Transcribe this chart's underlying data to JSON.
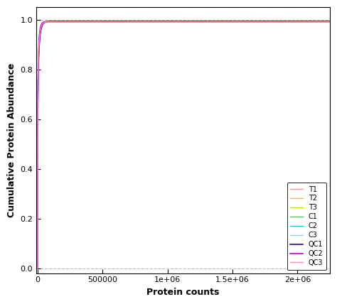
{
  "title": "",
  "xlabel": "Protein counts",
  "ylabel": "Cumulative Protein Abundance",
  "xlim": [
    -10000,
    2250000
  ],
  "ylim": [
    -0.02,
    1.05
  ],
  "xticks": [
    0,
    500000,
    1000000,
    1500000,
    2000000
  ],
  "yticks": [
    0.0,
    0.2,
    0.4,
    0.6,
    0.8,
    1.0
  ],
  "hlines": [
    0.0,
    1.0
  ],
  "hline_color": "#bbbbbb",
  "hline_style": "--",
  "series": [
    {
      "label": "T1",
      "color": "#FF9999",
      "lw": 1.0
    },
    {
      "label": "T2",
      "color": "#FFB347",
      "lw": 1.0
    },
    {
      "label": "T3",
      "color": "#CCDD00",
      "lw": 1.0
    },
    {
      "label": "C1",
      "color": "#55CC55",
      "lw": 1.0
    },
    {
      "label": "C2",
      "color": "#00DDCC",
      "lw": 1.0
    },
    {
      "label": "C3",
      "color": "#99CCFF",
      "lw": 1.0
    },
    {
      "label": "QC1",
      "color": "#1111AA",
      "lw": 1.2
    },
    {
      "label": "QC2",
      "color": "#CC00CC",
      "lw": 1.2
    },
    {
      "label": "QC3",
      "color": "#FF88BB",
      "lw": 1.0
    }
  ],
  "legend_loc": "lower right",
  "legend_fontsize": 7,
  "background_color": "#ffffff",
  "curve_x_max": 2250000
}
